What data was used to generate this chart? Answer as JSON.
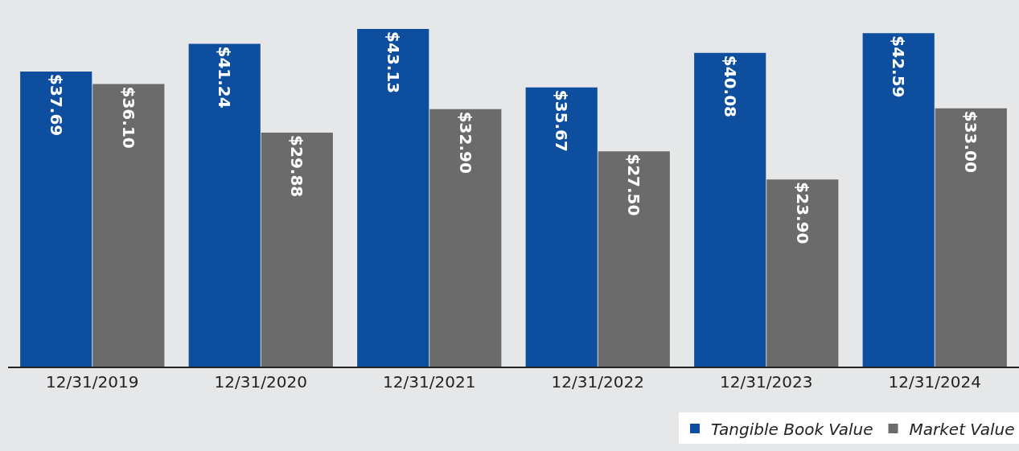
{
  "chart_data": {
    "type": "bar",
    "categories": [
      "12/31/2019",
      "12/31/2020",
      "12/31/2021",
      "12/31/2022",
      "12/31/2023",
      "12/31/2024"
    ],
    "series": [
      {
        "name": "Tangible Book Value",
        "color": "#0d4f9e",
        "values": [
          37.69,
          41.24,
          43.13,
          35.67,
          40.08,
          42.59
        ],
        "value_labels": [
          "$37.69",
          "$41.24",
          "$43.13",
          "$35.67",
          "$40.08",
          "$42.59"
        ]
      },
      {
        "name": "Market Value",
        "color": "#6b6b6b",
        "values": [
          36.1,
          29.88,
          32.9,
          27.5,
          23.9,
          33.0
        ],
        "value_labels": [
          "$36.10",
          "$29.88",
          "$32.90",
          "$27.50",
          "$23.90",
          "$33.00"
        ]
      }
    ],
    "grid": false,
    "legend": "bottom right"
  }
}
